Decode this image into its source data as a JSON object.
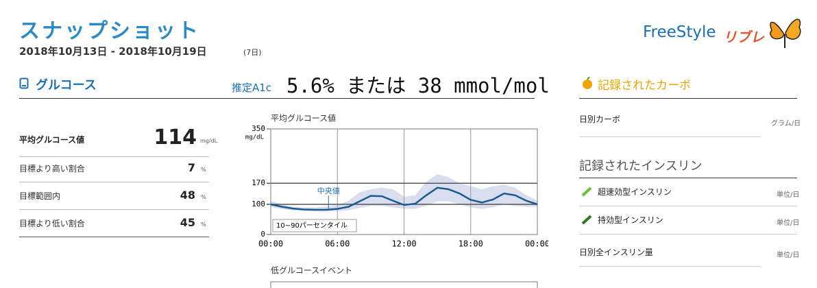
{
  "header": {
    "title": "スナップショット",
    "date_range": "2018年10月13日 - 2018年10月19日",
    "days": "(7日)",
    "logo_brand": "FreeStyle",
    "logo_product": "リブレ"
  },
  "glucose": {
    "heading": "グルコース",
    "a1c_label": "推定A1c",
    "a1c_value": "5.6% または 38 mmol/mol",
    "stats": [
      {
        "label": "平均グルコース値",
        "value": "114",
        "unit": "mg/dL"
      },
      {
        "label": "目標より高い割合",
        "value": "7",
        "unit": "%"
      },
      {
        "label": "目標範囲内",
        "value": "48",
        "unit": "%"
      },
      {
        "label": "目標より低い割合",
        "value": "45",
        "unit": "%"
      }
    ]
  },
  "chart": {
    "type": "line",
    "title": "平均グルコース値",
    "y_unit": "mg/dL",
    "x": [
      0,
      1,
      2,
      3,
      4,
      5,
      6,
      7,
      8,
      9,
      10,
      11,
      12,
      13,
      14,
      15,
      16,
      17,
      18,
      19,
      20,
      21,
      22,
      23,
      24
    ],
    "xlim": [
      0,
      24
    ],
    "xticks": [
      {
        "value": 0,
        "label": "00:00"
      },
      {
        "value": 6,
        "label": "06:00"
      },
      {
        "value": 12,
        "label": "12:00"
      },
      {
        "value": 18,
        "label": "18:00"
      },
      {
        "value": 24,
        "label": "00:00"
      }
    ],
    "ylim": [
      0,
      350
    ],
    "yticks": [
      0,
      100,
      170,
      350
    ],
    "median": {
      "name": "中央値",
      "color": "#1a5a8f",
      "values": [
        100,
        92,
        86,
        83,
        82,
        82,
        85,
        92,
        110,
        128,
        127,
        112,
        98,
        102,
        130,
        155,
        150,
        136,
        115,
        106,
        116,
        136,
        130,
        112,
        100
      ]
    },
    "band": {
      "name": "10~90パーセンタイル",
      "color": "#d9deef",
      "high": [
        112,
        100,
        92,
        90,
        90,
        92,
        98,
        112,
        140,
        150,
        155,
        150,
        125,
        130,
        175,
        200,
        190,
        170,
        160,
        150,
        160,
        165,
        155,
        130,
        112
      ],
      "low": [
        92,
        84,
        80,
        78,
        76,
        76,
        78,
        80,
        88,
        95,
        95,
        90,
        85,
        85,
        95,
        110,
        110,
        100,
        90,
        85,
        90,
        100,
        95,
        92,
        92
      ]
    }
  },
  "chart2": {
    "title": "低グルコースイベント"
  },
  "carbs": {
    "heading": "記録されたカーボ",
    "daily_label": "日別カーボ",
    "daily_unit": "グラム/日"
  },
  "insulin": {
    "heading": "記録されたインスリン",
    "rows": [
      {
        "label": "超速効型インスリン",
        "unit": "単位/日"
      },
      {
        "label": "持効型インスリン",
        "unit": "単位/日"
      },
      {
        "label": "日別全インスリン量",
        "unit": "単位/日"
      }
    ]
  }
}
